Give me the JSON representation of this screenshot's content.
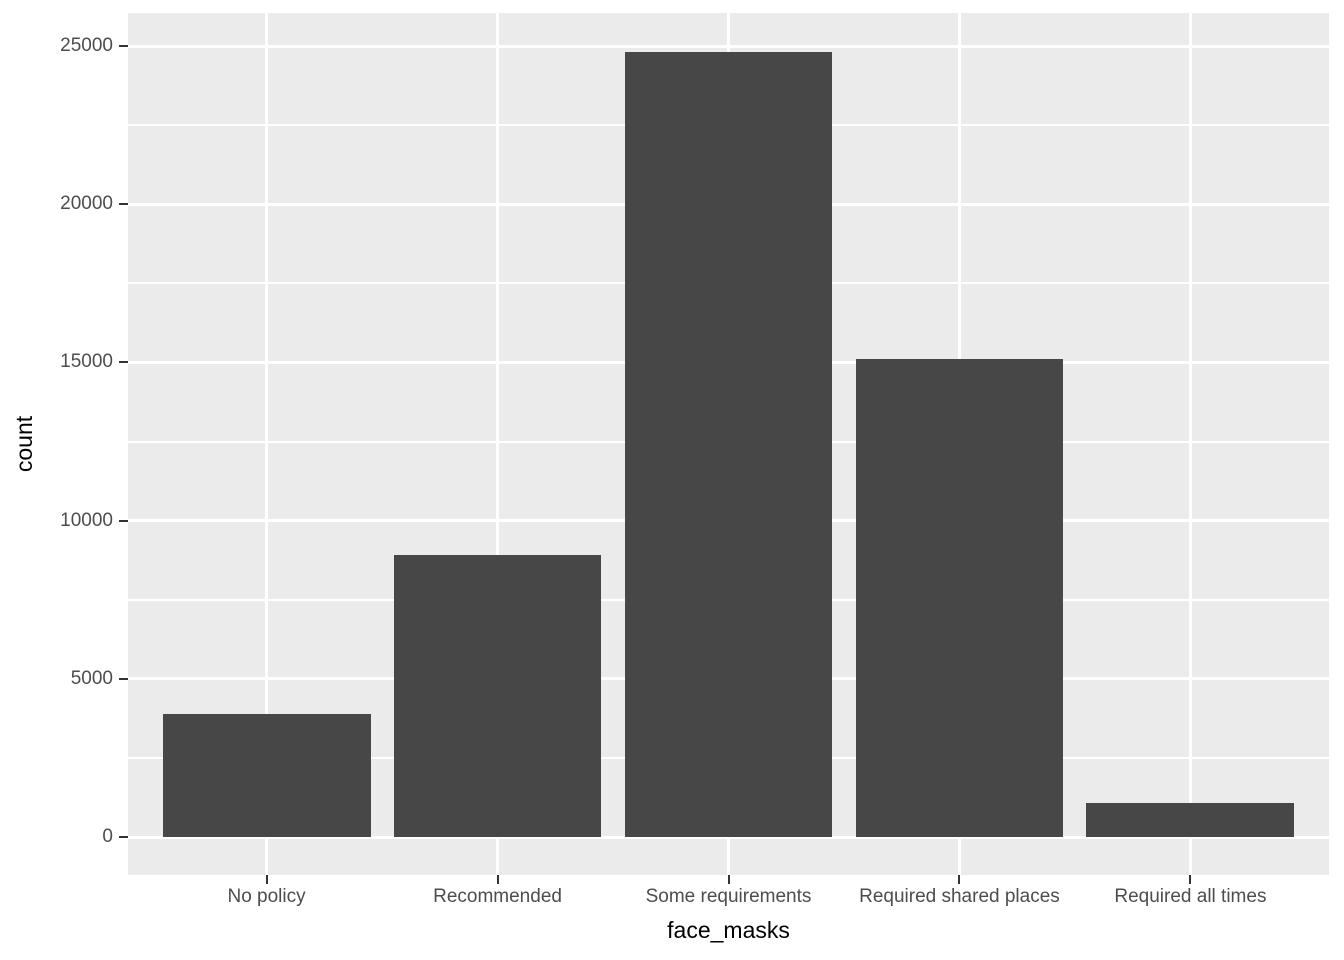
{
  "chart_data": {
    "type": "bar",
    "title": "",
    "xlabel": "face_masks",
    "ylabel": "count",
    "categories": [
      "No policy",
      "Recommended",
      "Some requirements",
      "Required shared places",
      "Required all times"
    ],
    "values": [
      3900,
      8900,
      24800,
      15100,
      1080
    ],
    "series": [
      {
        "name": "count",
        "values": [
          3900,
          8900,
          24800,
          15100,
          1080
        ]
      }
    ],
    "y_ticks": [
      0,
      5000,
      10000,
      15000,
      20000,
      25000
    ],
    "y_tick_labels": [
      "0",
      "5000",
      "10000",
      "15000",
      "20000",
      "25000"
    ],
    "y_minor_ticks": [
      2500,
      7500,
      12500,
      17500,
      22500
    ],
    "ylim": [
      -1200,
      26050
    ],
    "bar_width_fraction": 0.9,
    "grid": "major-and-minor-horizontal, major-vertical-at-category-centers",
    "legend_position": "none",
    "style": "ggplot2-grey-theme",
    "colors": {
      "bar_fill": "#474747",
      "panel_background": "#EBEBEB",
      "gridline": "#FFFFFF",
      "tick_text": "#4D4D4D",
      "axis_title_text": "#000000",
      "tick_mark": "#333333",
      "figure_background": "#FFFFFF"
    }
  }
}
